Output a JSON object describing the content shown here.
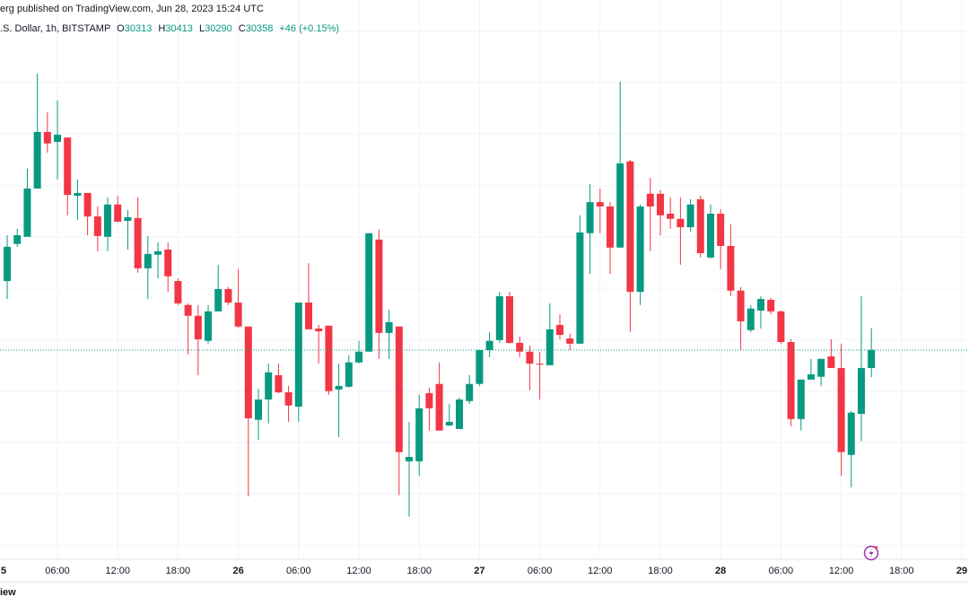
{
  "chart_data": {
    "type": "candlestick",
    "title": "erg published on TradingView.com, Jun 28, 2023 15:24 UTC",
    "symbol": ".S. Dollar, 1h, BITSTAMP",
    "ohlc_labels": [
      "O",
      "H",
      "L",
      "C"
    ],
    "change_label": "+46 (+0.15%)",
    "footer": "iew",
    "up_color": "#089981",
    "down_color": "#f23645",
    "grid": true,
    "xlim": [
      "2023-06-25 00:17",
      "2023-06-29 00:43"
    ],
    "ylim": [
      29840,
      31112
    ],
    "xticks": [
      {
        "value": "2023-06-25 00:00",
        "label": "5"
      },
      {
        "value": "2023-06-25 06:00",
        "label": "06:00"
      },
      {
        "value": "2023-06-25 12:00",
        "label": "12:00"
      },
      {
        "value": "2023-06-25 18:00",
        "label": "18:00"
      },
      {
        "value": "2023-06-26 00:00",
        "label": "26"
      },
      {
        "value": "2023-06-26 06:00",
        "label": "06:00"
      },
      {
        "value": "2023-06-26 12:00",
        "label": "12:00"
      },
      {
        "value": "2023-06-26 18:00",
        "label": "18:00"
      },
      {
        "value": "2023-06-27 00:00",
        "label": "27"
      },
      {
        "value": "2023-06-27 06:00",
        "label": "06:00"
      },
      {
        "value": "2023-06-27 12:00",
        "label": "12:00"
      },
      {
        "value": "2023-06-27 18:00",
        "label": "18:00"
      },
      {
        "value": "2023-06-28 00:00",
        "label": "28"
      },
      {
        "value": "2023-06-28 06:00",
        "label": "06:00"
      },
      {
        "value": "2023-06-28 12:00",
        "label": "12:00"
      },
      {
        "value": "2023-06-28 18:00",
        "label": "18:00"
      },
      {
        "value": "2023-06-29 00:00",
        "label": "29"
      }
    ],
    "x": [
      "2023-06-25 01:00",
      "2023-06-25 02:00",
      "2023-06-25 03:00",
      "2023-06-25 04:00",
      "2023-06-25 05:00",
      "2023-06-25 06:00",
      "2023-06-25 07:00",
      "2023-06-25 08:00",
      "2023-06-25 09:00",
      "2023-06-25 10:00",
      "2023-06-25 11:00",
      "2023-06-25 12:00",
      "2023-06-25 13:00",
      "2023-06-25 14:00",
      "2023-06-25 15:00",
      "2023-06-25 16:00",
      "2023-06-25 17:00",
      "2023-06-25 18:00",
      "2023-06-25 19:00",
      "2023-06-25 20:00",
      "2023-06-25 21:00",
      "2023-06-25 22:00",
      "2023-06-25 23:00",
      "2023-06-26 00:00",
      "2023-06-26 01:00",
      "2023-06-26 02:00",
      "2023-06-26 03:00",
      "2023-06-26 04:00",
      "2023-06-26 05:00",
      "2023-06-26 06:00",
      "2023-06-26 07:00",
      "2023-06-26 08:00",
      "2023-06-26 09:00",
      "2023-06-26 10:00",
      "2023-06-26 11:00",
      "2023-06-26 12:00",
      "2023-06-26 13:00",
      "2023-06-26 14:00",
      "2023-06-26 15:00",
      "2023-06-26 16:00",
      "2023-06-26 17:00",
      "2023-06-26 18:00",
      "2023-06-26 19:00",
      "2023-06-26 20:00",
      "2023-06-26 21:00",
      "2023-06-26 22:00",
      "2023-06-26 23:00",
      "2023-06-27 00:00",
      "2023-06-27 01:00",
      "2023-06-27 02:00",
      "2023-06-27 03:00",
      "2023-06-27 04:00",
      "2023-06-27 05:00",
      "2023-06-27 06:00",
      "2023-06-27 07:00",
      "2023-06-27 08:00",
      "2023-06-27 09:00",
      "2023-06-27 10:00",
      "2023-06-27 11:00",
      "2023-06-27 12:00",
      "2023-06-27 13:00",
      "2023-06-27 14:00",
      "2023-06-27 15:00",
      "2023-06-27 16:00",
      "2023-06-27 17:00",
      "2023-06-27 18:00",
      "2023-06-27 19:00",
      "2023-06-27 20:00",
      "2023-06-27 21:00",
      "2023-06-27 22:00",
      "2023-06-27 23:00",
      "2023-06-28 00:00",
      "2023-06-28 01:00",
      "2023-06-28 02:00",
      "2023-06-28 03:00",
      "2023-06-28 04:00",
      "2023-06-28 05:00",
      "2023-06-28 06:00",
      "2023-06-28 07:00",
      "2023-06-28 08:00",
      "2023-06-28 09:00",
      "2023-06-28 10:00",
      "2023-06-28 11:00",
      "2023-06-28 12:00",
      "2023-06-28 13:00",
      "2023-06-28 14:00",
      "2023-06-28 15:00"
    ],
    "open": [
      30531,
      30624,
      30642,
      30763,
      30905,
      30880,
      30891,
      30745,
      30752,
      30693,
      30642,
      30723,
      30682,
      30689,
      30563,
      30597,
      30610,
      30531,
      30471,
      30444,
      30381,
      30455,
      30511,
      30477,
      30417,
      30183,
      30234,
      30295,
      30252,
      30216,
      30477,
      30412,
      30419,
      30259,
      30266,
      30327,
      30354,
      30635,
      30401,
      30417,
      30079,
      30079,
      30250,
      30273,
      30169,
      30160,
      30230,
      30273,
      30358,
      30383,
      30493,
      30376,
      30354,
      30324,
      30320,
      30421,
      30387,
      30374,
      30651,
      30729,
      30718,
      30615,
      30831,
      30504,
      30750,
      30750,
      30700,
      30687,
      30666,
      30736,
      30590,
      30700,
      30619,
      30507,
      30408,
      30457,
      30484,
      30455,
      30378,
      30185,
      30284,
      30291,
      30342,
      30313,
      30095,
      30198,
      30313
    ],
    "high": [
      30646,
      30662,
      30813,
      31051,
      30954,
      30984,
      30891,
      30786,
      30752,
      30718,
      30741,
      30745,
      30709,
      30741,
      30644,
      30628,
      30628,
      30538,
      30475,
      30471,
      30471,
      30572,
      30516,
      30561,
      30417,
      30261,
      30324,
      30324,
      30268,
      30477,
      30576,
      30421,
      30419,
      30324,
      30345,
      30381,
      30651,
      30660,
      30459,
      30417,
      30178,
      30246,
      30264,
      30327,
      30223,
      30239,
      30295,
      30358,
      30403,
      30504,
      30504,
      30392,
      30369,
      30354,
      30475,
      30448,
      30399,
      30696,
      30774,
      30763,
      30729,
      31031,
      30835,
      30723,
      30790,
      30759,
      30741,
      30741,
      30736,
      30745,
      30723,
      30711,
      30673,
      30516,
      30471,
      30493,
      30489,
      30457,
      30385,
      30284,
      30336,
      30336,
      30385,
      30374,
      30205,
      30493,
      30413
    ],
    "low": [
      30486,
      30617,
      30642,
      30763,
      30853,
      30786,
      30696,
      30684,
      30646,
      30606,
      30606,
      30678,
      30610,
      30552,
      30486,
      30538,
      30504,
      30471,
      30347,
      30295,
      30374,
      30455,
      30471,
      30414,
      29991,
      30133,
      30174,
      30250,
      30178,
      30178,
      30410,
      30324,
      30246,
      30140,
      30264,
      30324,
      30354,
      30336,
      30336,
      29994,
      29940,
      30043,
      30156,
      30156,
      30167,
      30160,
      30223,
      30268,
      30340,
      30376,
      30374,
      30340,
      30257,
      30234,
      30320,
      30385,
      30358,
      30374,
      30549,
      30651,
      30549,
      30615,
      30403,
      30471,
      30606,
      30646,
      30662,
      30572,
      30655,
      30590,
      30588,
      30561,
      30493,
      30358,
      30403,
      30412,
      30448,
      30374,
      30167,
      30156,
      30284,
      30268,
      30313,
      30043,
      30014,
      30129,
      30290
    ],
    "close": [
      30617,
      30646,
      30763,
      30905,
      30876,
      30898,
      30747,
      30752,
      30693,
      30644,
      30723,
      30680,
      30691,
      30563,
      30599,
      30606,
      30543,
      30475,
      30444,
      30385,
      30455,
      30511,
      30477,
      30417,
      30187,
      30234,
      30302,
      30252,
      30219,
      30477,
      30410,
      30405,
      30255,
      30268,
      30327,
      30354,
      30651,
      30401,
      30428,
      30102,
      30090,
      30212,
      30212,
      30156,
      30178,
      30234,
      30273,
      30358,
      30381,
      30493,
      30376,
      30354,
      30324,
      30322,
      30410,
      30396,
      30374,
      30653,
      30729,
      30718,
      30615,
      30826,
      30504,
      30718,
      30718,
      30696,
      30687,
      30666,
      30723,
      30601,
      30700,
      30619,
      30507,
      30430,
      30462,
      30486,
      30455,
      30378,
      30185,
      30284,
      30297,
      30336,
      30313,
      30102,
      30201,
      30313,
      30358
    ]
  }
}
